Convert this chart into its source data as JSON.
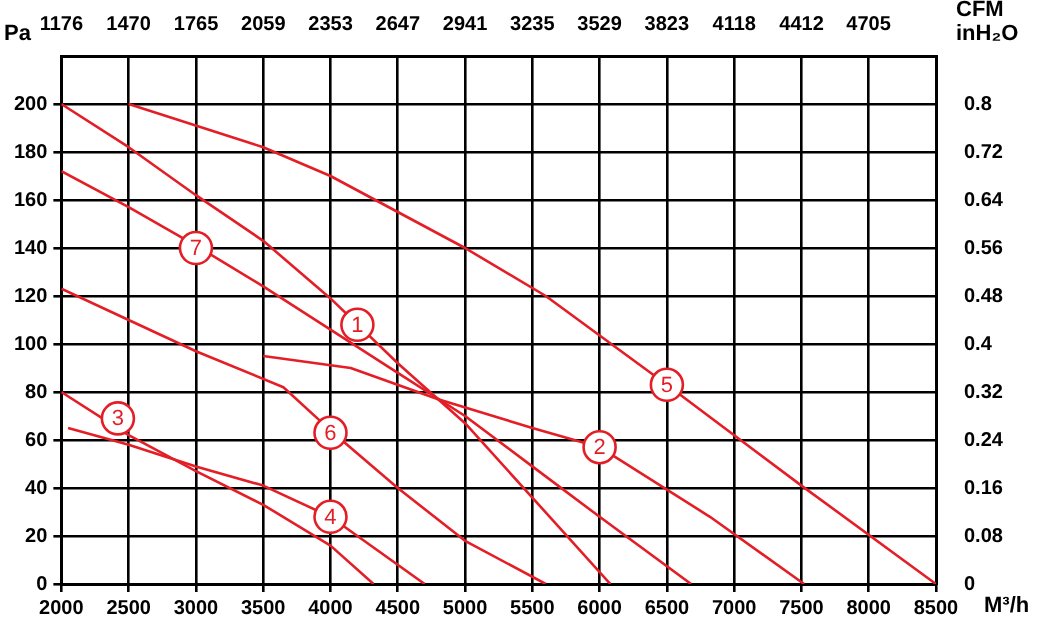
{
  "chart_data": {
    "type": "line",
    "xlabel": "M³/h",
    "ylabel": "Pa",
    "x2label": "CFM",
    "y2label": "inH₂O",
    "xlim": [
      2000,
      8500
    ],
    "xticks": [
      2000,
      2500,
      3000,
      3500,
      4000,
      4500,
      5000,
      5500,
      6000,
      6500,
      7000,
      7500,
      8000,
      8500
    ],
    "x2lim": [
      1176,
      5000
    ],
    "x2ticks": [
      1176,
      1470,
      1765,
      2059,
      2353,
      2647,
      2941,
      3235,
      3529,
      3823,
      4118,
      4412,
      4705
    ],
    "ylim": [
      0,
      220
    ],
    "yticks": [
      0,
      20,
      40,
      60,
      80,
      100,
      120,
      140,
      160,
      180,
      200
    ],
    "y2lim": [
      0,
      0.88
    ],
    "y2ticks": [
      0,
      0.08,
      0.16,
      0.24,
      0.32,
      0.4,
      0.48,
      0.56,
      0.64,
      0.72,
      0.8
    ],
    "grid": true,
    "marker": "none",
    "line_style": "solid",
    "series": [
      {
        "color": "#e41e26",
        "x": [
          2000,
          2500,
          3000,
          3500,
          4000,
          4500,
          5000,
          5500,
          6080
        ],
        "values": [
          200,
          182,
          162,
          143,
          119,
          92,
          67,
          36,
          0
        ]
      },
      {
        "color": "#e41e26",
        "x": [
          3500,
          4150,
          4800,
          5500,
          6000,
          6820,
          7520
        ],
        "values": [
          95,
          90,
          77,
          65,
          57,
          28,
          0
        ]
      },
      {
        "color": "#e41e26",
        "x": [
          2000,
          2500,
          3000,
          3500,
          4000,
          4320
        ],
        "values": [
          80,
          62,
          47,
          33,
          16,
          0
        ]
      },
      {
        "color": "#e41e26",
        "x": [
          2050,
          2500,
          3000,
          3500,
          4000,
          4700
        ],
        "values": [
          65,
          58,
          49,
          41,
          28,
          0
        ]
      },
      {
        "color": "#e41e26",
        "x": [
          2500,
          3500,
          4000,
          5000,
          5600,
          6500,
          7500,
          8500
        ],
        "values": [
          200,
          182,
          170,
          140,
          120,
          83,
          41,
          0
        ]
      },
      {
        "color": "#e41e26",
        "x": [
          2000,
          2500,
          3000,
          3650,
          4000,
          4500,
          5000,
          5600
        ],
        "values": [
          123,
          110,
          97,
          82,
          64,
          40,
          18,
          0
        ]
      },
      {
        "color": "#e41e26",
        "x": [
          2000,
          2500,
          3000,
          3500,
          4000,
          4500,
          5000,
          5500,
          6000,
          6680
        ],
        "values": [
          172,
          157,
          141,
          124,
          106,
          88,
          70,
          49,
          28,
          0
        ]
      }
    ],
    "annotations": [
      {
        "text": "1",
        "x": 4200,
        "y": 108
      },
      {
        "text": "2",
        "x": 6000,
        "y": 57
      },
      {
        "text": "3",
        "x": 2420,
        "y": 69
      },
      {
        "text": "4",
        "x": 4000,
        "y": 28
      },
      {
        "text": "5",
        "x": 6500,
        "y": 83
      },
      {
        "text": "6",
        "x": 4000,
        "y": 63
      },
      {
        "text": "7",
        "x": 3000,
        "y": 140
      }
    ]
  }
}
